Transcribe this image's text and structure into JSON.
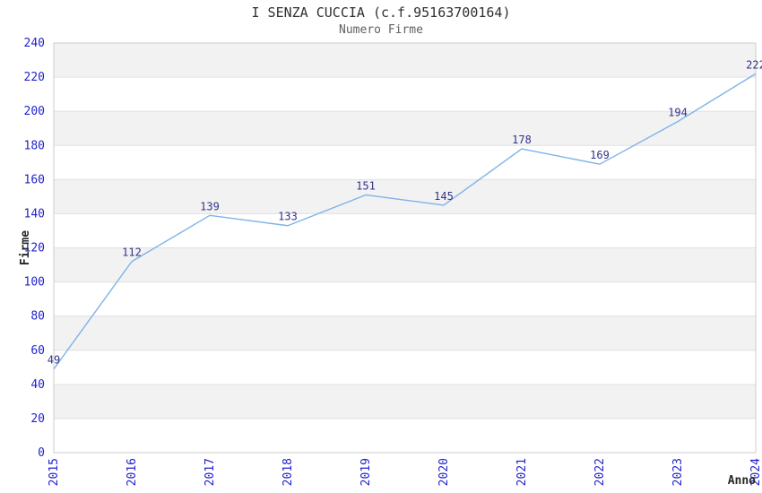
{
  "chart_data": {
    "type": "line",
    "title": "I SENZA CUCCIA (c.f.95163700164)",
    "subtitle": "Numero Firme",
    "xlabel": "Anno",
    "ylabel": "Firme",
    "categories": [
      "2015",
      "2016",
      "2017",
      "2018",
      "2019",
      "2020",
      "2021",
      "2022",
      "2023",
      "2024"
    ],
    "series": [
      {
        "name": "Numero Firme",
        "values": [
          49,
          112,
          139,
          133,
          151,
          145,
          178,
          169,
          194,
          222
        ]
      }
    ],
    "ylim": [
      0,
      240
    ],
    "ytick_step": 20,
    "grid": "horizontal-gridlines-with-alternating-bands",
    "legend": "none",
    "data_labels": true,
    "x_tick_rotation": -90,
    "colors": {
      "line": "#7eb3e8",
      "tick_label": "#2222cc",
      "data_label": "#32328c",
      "band": "#f2f2f2",
      "gridline": "#e0e0e0",
      "plot_border": "#cccccc",
      "title": "#303030",
      "subtitle": "#606060",
      "axis_title": "#262626",
      "background": "#ffffff"
    }
  }
}
